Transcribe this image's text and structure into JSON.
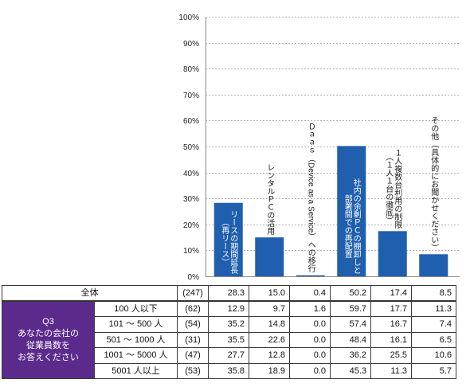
{
  "chart_data": {
    "type": "bar",
    "categories": [
      "リースの期間延長\n（再リース）",
      "レンタルＰＣの活用",
      "Ｄａａｓ（Device as a Service）への移行",
      "社内の余剰ＰＣの棚卸しと\n部署間での再配置",
      "１人複数台利用の制限\n（１人１台の徹底）",
      "その他（具体的にお聞かせください）"
    ],
    "values": [
      28.3,
      15.0,
      0.4,
      50.2,
      17.4,
      8.5
    ],
    "ylim": [
      0,
      100
    ],
    "yticks": [
      0,
      10,
      20,
      30,
      40,
      50,
      60,
      70,
      80,
      90,
      100
    ],
    "ytick_labels": [
      "0%",
      "10%",
      "20%",
      "30%",
      "40%",
      "50%",
      "60%",
      "70%",
      "80%",
      "90%",
      "100%"
    ],
    "grid": true,
    "bar_color": "#1f5fae",
    "table": {
      "total": {
        "label": "全体",
        "n": "(247)",
        "values": [
          "28.3",
          "15.0",
          "0.4",
          "50.2",
          "17.4",
          "8.5"
        ]
      },
      "question": {
        "id": "Q3",
        "text": "あなたの会社の\n従業員数を\nお答えください",
        "bg_color": "#5b2b8c"
      },
      "rows": [
        {
          "label": "100 人以下",
          "n": "(62)",
          "values": [
            "12.9",
            "9.7",
            "1.6",
            "59.7",
            "17.7",
            "11.3"
          ]
        },
        {
          "label": "101 ～ 500 人",
          "n": "(54)",
          "values": [
            "35.2",
            "14.8",
            "0.0",
            "57.4",
            "16.7",
            "7.4"
          ]
        },
        {
          "label": "501 ～ 1000 人",
          "n": "(31)",
          "values": [
            "35.5",
            "22.6",
            "0.0",
            "48.4",
            "16.1",
            "6.5"
          ]
        },
        {
          "label": "1001 ～ 5000 人",
          "n": "(47)",
          "values": [
            "27.7",
            "12.8",
            "0.0",
            "36.2",
            "25.5",
            "10.6"
          ]
        },
        {
          "label": "5001 人以上",
          "n": "(53)",
          "values": [
            "35.8",
            "18.9",
            "0.0",
            "45.3",
            "11.3",
            "5.7"
          ]
        }
      ]
    }
  }
}
